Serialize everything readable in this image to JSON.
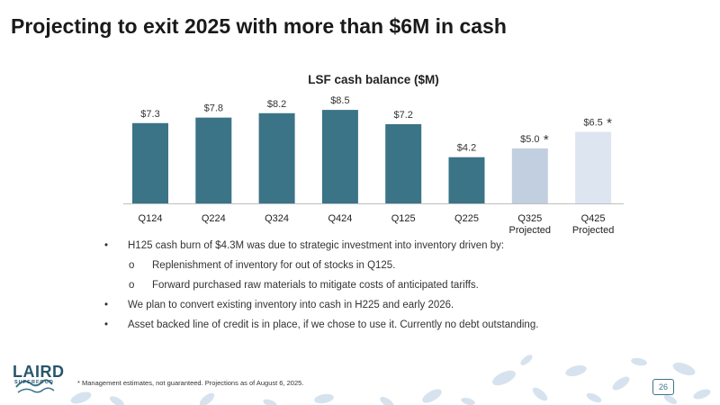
{
  "slide_title": "Projecting to exit 2025 with more than $6M in cash",
  "chart_data": {
    "type": "bar",
    "title": "LSF cash balance ($M)",
    "categories": [
      "Q124",
      "Q224",
      "Q324",
      "Q424",
      "Q125",
      "Q225",
      "Q325",
      "Q425"
    ],
    "category_sublabels": [
      "",
      "",
      "",
      "",
      "",
      "",
      "Projected",
      "Projected"
    ],
    "values": [
      7.3,
      7.8,
      8.2,
      8.5,
      7.2,
      4.2,
      5.0,
      6.5
    ],
    "data_labels": [
      "$7.3",
      "$7.8",
      "$8.2",
      "$8.5",
      "$7.2",
      "$4.2",
      "$5.0",
      "$6.5"
    ],
    "projected": [
      false,
      false,
      false,
      false,
      false,
      false,
      true,
      true
    ],
    "label_marks": [
      "",
      "",
      "",
      "",
      "",
      "",
      "*",
      "*"
    ],
    "colors": [
      "#3b7387",
      "#3b7387",
      "#3b7387",
      "#3b7387",
      "#3b7387",
      "#3b7387",
      "#c2cfe0",
      "#dde5f0"
    ],
    "ylim": [
      0,
      9
    ],
    "xlabel": "",
    "ylabel": "",
    "grid": false
  },
  "bullets": [
    {
      "level": 1,
      "marker": "•",
      "text": "H125 cash burn of $4.3M was due to strategic investment into inventory driven by:"
    },
    {
      "level": 2,
      "marker": "o",
      "text": "Replenishment of inventory for out of stocks in Q125."
    },
    {
      "level": 2,
      "marker": "o",
      "text": "Forward purchased raw materials to mitigate costs of anticipated tariffs."
    },
    {
      "level": 1,
      "marker": "•",
      "text": "We plan to convert existing inventory into cash in H225 and early 2026."
    },
    {
      "level": 1,
      "marker": "•",
      "text": "Asset backed line of credit is in place, if we chose to use it. Currently no debt outstanding."
    }
  ],
  "footer": {
    "logo_text": "LAIRD",
    "logo_subtext": "SUPERFOOD",
    "footnote": "* Management estimates, not guaranteed.  Projections as of August 6, 2025.",
    "page_number": "26"
  },
  "colors": {
    "bar_actual": "#3b7387",
    "bar_q325": "#c2cfe0",
    "bar_q425": "#dde5f0",
    "footer_leaf": "#d6e3ee",
    "brand": "#3c7489"
  }
}
